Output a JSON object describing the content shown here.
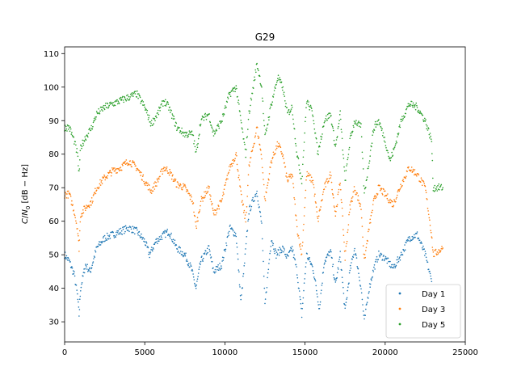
{
  "chart_data": {
    "type": "scatter",
    "title": "G29",
    "xlabel": "",
    "ylabel": "C/N0 [dB-Hz]",
    "xlim": [
      0,
      25000
    ],
    "ylim": [
      24,
      112
    ],
    "xticks": [
      0,
      5000,
      10000,
      15000,
      20000,
      25000
    ],
    "yticks": [
      30,
      40,
      50,
      60,
      70,
      80,
      90,
      100,
      110
    ],
    "legend_position": "lower-right",
    "grid": false,
    "series": [
      {
        "name": "Day 1",
        "color": "#1f77b4",
        "points": [
          [
            0,
            50
          ],
          [
            300,
            48
          ],
          [
            600,
            44
          ],
          [
            800,
            38
          ],
          [
            900,
            32
          ],
          [
            1000,
            40
          ],
          [
            1300,
            47
          ],
          [
            1600,
            45
          ],
          [
            2000,
            52
          ],
          [
            2500,
            55
          ],
          [
            3000,
            56
          ],
          [
            3500,
            57
          ],
          [
            4000,
            58
          ],
          [
            4500,
            57
          ],
          [
            5000,
            54
          ],
          [
            5300,
            50
          ],
          [
            5700,
            54
          ],
          [
            6200,
            56
          ],
          [
            6500,
            57
          ],
          [
            7000,
            52
          ],
          [
            7500,
            50
          ],
          [
            7900,
            46
          ],
          [
            8200,
            40
          ],
          [
            8500,
            48
          ],
          [
            9000,
            52
          ],
          [
            9300,
            45
          ],
          [
            9800,
            47
          ],
          [
            10300,
            58
          ],
          [
            10700,
            56
          ],
          [
            11000,
            36
          ],
          [
            11200,
            46
          ],
          [
            11500,
            63
          ],
          [
            12000,
            69
          ],
          [
            12300,
            59
          ],
          [
            12500,
            35
          ],
          [
            12900,
            55
          ],
          [
            13200,
            50
          ],
          [
            13600,
            52
          ],
          [
            13900,
            49
          ],
          [
            14200,
            52
          ],
          [
            14500,
            45
          ],
          [
            14800,
            32
          ],
          [
            15100,
            50
          ],
          [
            15500,
            46
          ],
          [
            15900,
            34
          ],
          [
            16200,
            48
          ],
          [
            16600,
            51
          ],
          [
            16900,
            41
          ],
          [
            17200,
            50
          ],
          [
            17500,
            33
          ],
          [
            17800,
            45
          ],
          [
            18100,
            52
          ],
          [
            18500,
            40
          ],
          [
            18700,
            30
          ],
          [
            19000,
            40
          ],
          [
            19300,
            46
          ],
          [
            19600,
            50
          ],
          [
            20000,
            49
          ],
          [
            20500,
            46
          ],
          [
            21000,
            50
          ],
          [
            21500,
            55
          ],
          [
            22000,
            56
          ],
          [
            22500,
            50
          ],
          [
            22900,
            42
          ]
        ]
      },
      {
        "name": "Day 3",
        "color": "#ff7f0e",
        "points": [
          [
            0,
            68
          ],
          [
            300,
            68
          ],
          [
            600,
            63
          ],
          [
            800,
            58
          ],
          [
            900,
            52
          ],
          [
            1000,
            62
          ],
          [
            1300,
            64
          ],
          [
            1700,
            66
          ],
          [
            2000,
            70
          ],
          [
            2500,
            73
          ],
          [
            3000,
            75
          ],
          [
            3500,
            76
          ],
          [
            4000,
            78
          ],
          [
            4500,
            76
          ],
          [
            5000,
            72
          ],
          [
            5400,
            69
          ],
          [
            5800,
            72
          ],
          [
            6200,
            76
          ],
          [
            6500,
            75
          ],
          [
            7000,
            71
          ],
          [
            7500,
            70
          ],
          [
            8000,
            66
          ],
          [
            8200,
            58
          ],
          [
            8500,
            66
          ],
          [
            9000,
            70
          ],
          [
            9300,
            62
          ],
          [
            9800,
            66
          ],
          [
            10300,
            76
          ],
          [
            10700,
            80
          ],
          [
            11000,
            68
          ],
          [
            11300,
            60
          ],
          [
            11500,
            76
          ],
          [
            12000,
            88
          ],
          [
            12300,
            79
          ],
          [
            12500,
            66
          ],
          [
            12900,
            78
          ],
          [
            13300,
            83
          ],
          [
            13600,
            80
          ],
          [
            13900,
            72
          ],
          [
            14200,
            74
          ],
          [
            14500,
            58
          ],
          [
            14800,
            50
          ],
          [
            15100,
            74
          ],
          [
            15500,
            72
          ],
          [
            15800,
            60
          ],
          [
            16200,
            70
          ],
          [
            16600,
            74
          ],
          [
            16900,
            62
          ],
          [
            17200,
            72
          ],
          [
            17500,
            49
          ],
          [
            17800,
            64
          ],
          [
            18100,
            70
          ],
          [
            18500,
            64
          ],
          [
            18700,
            48
          ],
          [
            19000,
            58
          ],
          [
            19300,
            66
          ],
          [
            19600,
            70
          ],
          [
            20000,
            68
          ],
          [
            20500,
            65
          ],
          [
            21000,
            71
          ],
          [
            21500,
            76
          ],
          [
            22000,
            74
          ],
          [
            22500,
            70
          ],
          [
            22900,
            56
          ],
          [
            23000,
            50
          ],
          [
            23600,
            52
          ]
        ]
      },
      {
        "name": "Day 5",
        "color": "#2ca02c",
        "points": [
          [
            0,
            88
          ],
          [
            300,
            88
          ],
          [
            600,
            84
          ],
          [
            800,
            80
          ],
          [
            900,
            74
          ],
          [
            1000,
            82
          ],
          [
            1300,
            85
          ],
          [
            1700,
            88
          ],
          [
            2000,
            92
          ],
          [
            2500,
            94
          ],
          [
            3000,
            95
          ],
          [
            3500,
            96
          ],
          [
            4000,
            97
          ],
          [
            4500,
            98
          ],
          [
            5000,
            94
          ],
          [
            5400,
            89
          ],
          [
            5800,
            92
          ],
          [
            6200,
            96
          ],
          [
            6500,
            94
          ],
          [
            7000,
            88
          ],
          [
            7500,
            86
          ],
          [
            8000,
            86
          ],
          [
            8200,
            80
          ],
          [
            8500,
            90
          ],
          [
            9000,
            92
          ],
          [
            9300,
            86
          ],
          [
            9800,
            90
          ],
          [
            10300,
            98
          ],
          [
            10700,
            100
          ],
          [
            11000,
            90
          ],
          [
            11300,
            80
          ],
          [
            11500,
            92
          ],
          [
            12000,
            107
          ],
          [
            12300,
            100
          ],
          [
            12500,
            85
          ],
          [
            12900,
            95
          ],
          [
            13300,
            103
          ],
          [
            13600,
            100
          ],
          [
            13900,
            92
          ],
          [
            14200,
            94
          ],
          [
            14500,
            80
          ],
          [
            14800,
            72
          ],
          [
            15100,
            96
          ],
          [
            15500,
            92
          ],
          [
            15800,
            80
          ],
          [
            16200,
            90
          ],
          [
            16600,
            92
          ],
          [
            16900,
            82
          ],
          [
            17200,
            92
          ],
          [
            17500,
            72
          ],
          [
            17800,
            84
          ],
          [
            18100,
            90
          ],
          [
            18500,
            88
          ],
          [
            18700,
            68
          ],
          [
            19000,
            78
          ],
          [
            19300,
            88
          ],
          [
            19600,
            90
          ],
          [
            20000,
            84
          ],
          [
            20300,
            78
          ],
          [
            20600,
            82
          ],
          [
            21000,
            90
          ],
          [
            21500,
            95
          ],
          [
            22000,
            94
          ],
          [
            22500,
            90
          ],
          [
            22900,
            84
          ],
          [
            23000,
            70
          ],
          [
            23600,
            70
          ]
        ]
      }
    ]
  }
}
